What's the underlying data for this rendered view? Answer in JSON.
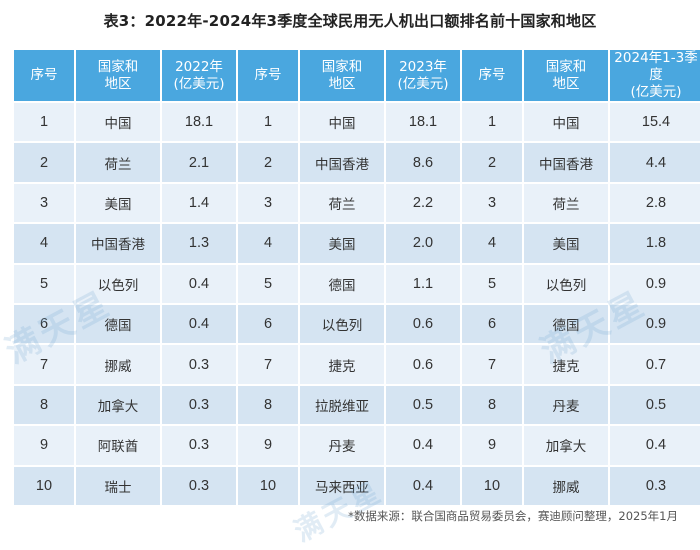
{
  "title": "表3：2022年-2024年3季度全球民用无人机出口额排名前十国家和地区",
  "headers": [
    "序号",
    "国家和\n地区",
    "2022年\n(亿美元)",
    "序号",
    "国家和\n地区",
    "2023年\n(亿美元)",
    "序号",
    "国家和\n地区",
    "2024年1-3季度\n(亿美元)"
  ],
  "rows": [
    [
      "1",
      "中国",
      "18.1",
      "1",
      "中国",
      "18.1",
      "1",
      "中国",
      "15.4"
    ],
    [
      "2",
      "荷兰",
      "2.1",
      "2",
      "中国香港",
      "8.6",
      "2",
      "中国香港",
      "4.4"
    ],
    [
      "3",
      "美国",
      "1.4",
      "3",
      "荷兰",
      "2.2",
      "3",
      "荷兰",
      "2.8"
    ],
    [
      "4",
      "中国香港",
      "1.3",
      "4",
      "美国",
      "2.0",
      "4",
      "美国",
      "1.8"
    ],
    [
      "5",
      "以色列",
      "0.4",
      "5",
      "德国",
      "1.1",
      "5",
      "以色列",
      "0.9"
    ],
    [
      "6",
      "德国",
      "0.4",
      "6",
      "以色列",
      "0.6",
      "6",
      "德国",
      "0.9"
    ],
    [
      "7",
      "挪威",
      "0.3",
      "7",
      "捷克",
      "0.6",
      "7",
      "捷克",
      "0.7"
    ],
    [
      "8",
      "加拿大",
      "0.3",
      "8",
      "拉脱维亚",
      "0.5",
      "8",
      "丹麦",
      "0.5"
    ],
    [
      "9",
      "阿联酋",
      "0.3",
      "9",
      "丹麦",
      "0.4",
      "9",
      "加拿大",
      "0.4"
    ],
    [
      "10",
      "瑞士",
      "0.3",
      "10",
      "马来西亚",
      "0.4",
      "10",
      "挪威",
      "0.3"
    ]
  ],
  "watermark": "满天星",
  "source": "*数据来源：联合国商品贸易委员会，赛迪顾问整理，2025年1月"
}
